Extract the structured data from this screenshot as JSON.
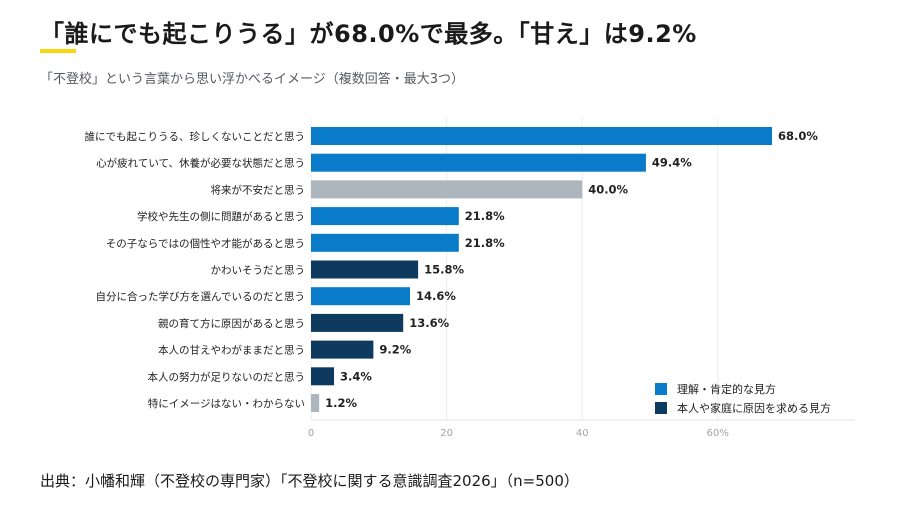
{
  "header": {
    "title": "「誰にでも起こりうる」が68.0%で最多。「甘え」は9.2%",
    "subtitle": "「不登校」という言葉から思い浮かべるイメージ（複数回答・最大3つ）"
  },
  "colors": {
    "understanding": "#0a7bc8",
    "family_cause": "#0f3a5f",
    "neutral": "#adb5bd",
    "accent": "#f5d90a"
  },
  "chart_data": {
    "type": "bar",
    "orientation": "horizontal",
    "categories": [
      "誰にでも起こりうる、珍しくないことだと思う",
      "心が疲れていて、休養が必要な状態だと思う",
      "将来が不安だと思う",
      "学校や先生の側に問題があると思う",
      "その子ならではの個性や才能があると思う",
      "かわいそうだと思う",
      "自分に合った学び方を選んでいるのだと思う",
      "親の育て方に原因があると思う",
      "本人の甘えやわがままだと思う",
      "本人の努力が足りないのだと思う",
      "特にイメージはない・わからない"
    ],
    "values": [
      68.0,
      49.4,
      40.0,
      21.8,
      21.8,
      15.8,
      14.6,
      13.6,
      9.2,
      3.4,
      1.2
    ],
    "value_labels": [
      "68.0%",
      "49.4%",
      "40.0%",
      "21.8%",
      "21.8%",
      "15.8%",
      "14.6%",
      "13.6%",
      "9.2%",
      "3.4%",
      "1.2%"
    ],
    "groups": [
      "understanding",
      "understanding",
      "neutral",
      "understanding",
      "understanding",
      "family_cause",
      "understanding",
      "family_cause",
      "family_cause",
      "family_cause",
      "neutral"
    ],
    "xlim": [
      0,
      80
    ],
    "x_ticks": [
      0,
      20,
      40,
      60
    ],
    "x_tick_labels": [
      "0",
      "20",
      "40",
      "60%"
    ],
    "grid": true,
    "legend": {
      "position": "bottom-right",
      "items": [
        {
          "group": "understanding",
          "label": "理解・肯定的な見方"
        },
        {
          "group": "family_cause",
          "label": "本人や家庭に原因を求める見方"
        }
      ]
    }
  },
  "footer": {
    "source": "出典：小幡和輝（不登校の専門家）「不登校に関する意識調査2026」（n=500）"
  }
}
